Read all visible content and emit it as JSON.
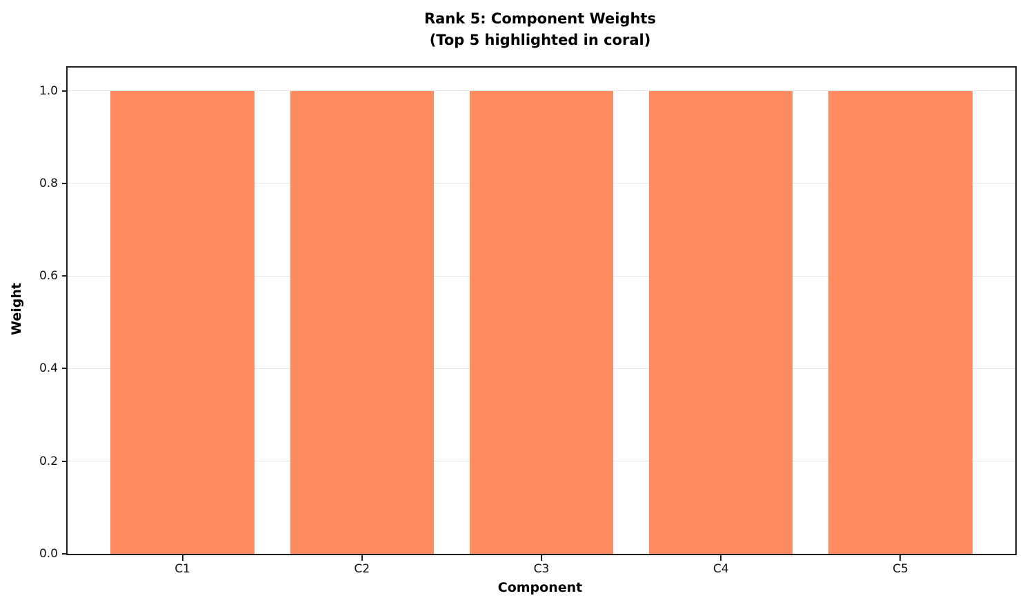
{
  "chart_data": {
    "type": "bar",
    "title": "Rank 5: Component Weights",
    "subtitle": "(Top 5 highlighted in coral)",
    "categories": [
      "C1",
      "C2",
      "C3",
      "C4",
      "C5"
    ],
    "values": [
      1.0,
      1.0,
      1.0,
      1.0,
      1.0
    ],
    "xlabel": "Component",
    "ylabel": "Weight",
    "ylim": [
      0,
      1.05
    ],
    "ytick_labels": [
      "0.0",
      "0.2",
      "0.4",
      "0.6",
      "0.8",
      "1.0"
    ],
    "legend": "none",
    "grid": "horizontal",
    "bar_color": "#FF8C61",
    "gridline_color": "#E7E7E7",
    "axis_color": "#1F1F1F",
    "text_color": "#000000",
    "bar_width_fraction": 0.8
  }
}
